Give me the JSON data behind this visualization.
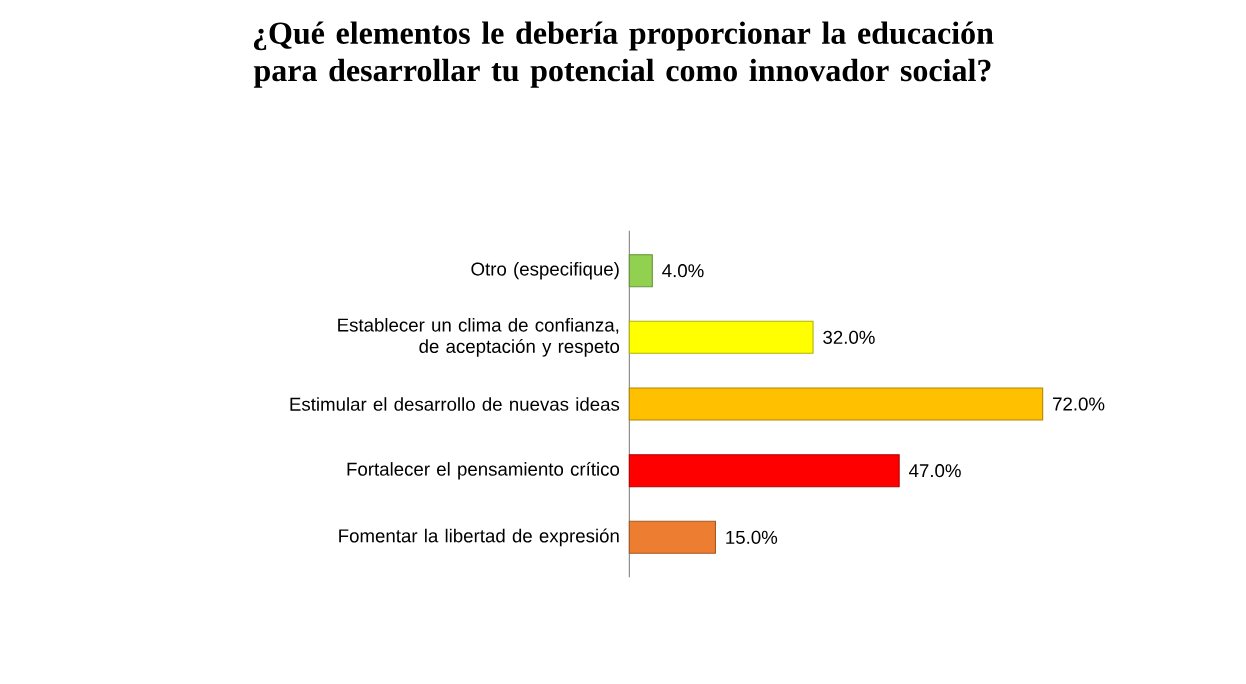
{
  "chart_data": {
    "type": "bar",
    "orientation": "horizontal",
    "title": "¿Qué elementos le debería proporcionar la educación para desarrollar tu potencial como innovador social?",
    "categories": [
      "Otro (especifique)",
      "Establecer un clima de confianza, de aceptación y respeto",
      "Estimular el desarrollo de nuevas ideas",
      "Fortalecer el pensamiento crítico",
      "Fomentar la libertad de expresión"
    ],
    "values": [
      4,
      32,
      72,
      47,
      15
    ],
    "value_labels": [
      "4.0%",
      "32.0%",
      "72.0%",
      "47.0%",
      "15.0%"
    ],
    "colors": [
      "#92d050",
      "#ffff00",
      "#ffc000",
      "#ff0000",
      "#ed7d31"
    ]
  }
}
